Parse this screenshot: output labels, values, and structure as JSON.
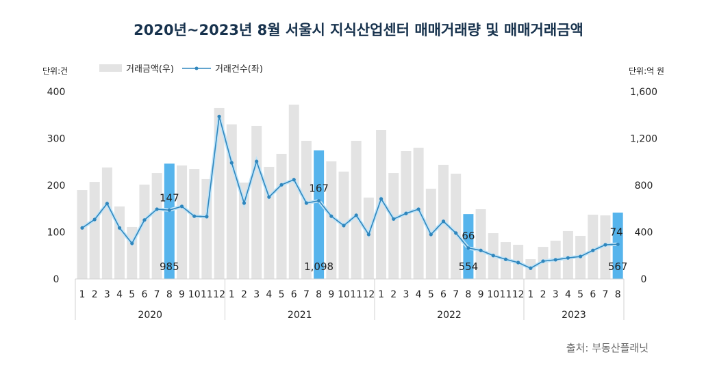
{
  "chart_data": {
    "type": "bar+line",
    "title": "2020년~2023년 8월 서울시 지식산업센터 매매거래량 및 매매거래금액",
    "left_unit": "단위:건",
    "right_unit": "단위:억 원",
    "source": "출처: 부동산플래닛",
    "left_ylim": [
      0,
      400
    ],
    "right_ylim": [
      0,
      1600
    ],
    "left_ticks": [
      "0",
      "100",
      "200",
      "300",
      "400"
    ],
    "right_ticks": [
      "0",
      "400",
      "800",
      "1,200",
      "1,600"
    ],
    "years": [
      "2020",
      "2021",
      "2022",
      "2023"
    ],
    "months": [
      "1",
      "2",
      "3",
      "4",
      "5",
      "6",
      "7",
      "8",
      "9",
      "10",
      "11",
      "12",
      "1",
      "2",
      "3",
      "4",
      "5",
      "6",
      "7",
      "8",
      "9",
      "10",
      "11",
      "12",
      "1",
      "2",
      "3",
      "4",
      "5",
      "6",
      "7",
      "8",
      "9",
      "10",
      "11",
      "12",
      "1",
      "2",
      "3",
      "4",
      "5",
      "6",
      "7",
      "8"
    ],
    "highlight_indices": [
      7,
      19,
      31,
      43
    ],
    "colors": {
      "bar": "#e3e3e3",
      "bar_highlight": "#56b4ec",
      "line": "#2f86bd",
      "line_glow": "#bfe3f7"
    },
    "series": [
      {
        "name": "거래금액(우)",
        "axis": "right",
        "kind": "bar",
        "values": [
          759,
          829,
          952,
          619,
          444,
          806,
          905,
          985,
          969,
          940,
          853,
          1460,
          1320,
          823,
          1308,
          958,
          1069,
          1489,
          1180,
          1098,
          1004,
          917,
          1180,
          695,
          1273,
          905,
          1092,
          1121,
          771,
          975,
          899,
          554,
          596,
          391,
          315,
          292,
          169,
          274,
          327,
          409,
          368,
          549,
          543,
          567
        ],
        "labels": {
          "7": "985",
          "19": "1,098",
          "31": "554",
          "43": "567"
        }
      },
      {
        "name": "거래건수(좌)",
        "axis": "left",
        "kind": "line",
        "values": [
          109,
          127,
          161,
          109,
          76,
          126,
          149,
          147,
          155,
          134,
          133,
          347,
          248,
          162,
          251,
          175,
          201,
          212,
          162,
          167,
          134,
          114,
          136,
          95,
          171,
          128,
          140,
          149,
          95,
          123,
          98,
          66,
          61,
          50,
          42,
          35,
          23,
          38,
          41,
          45,
          48,
          61,
          73,
          74
        ],
        "labels": {
          "7": "147",
          "19": "167",
          "31": "66",
          "43": "74"
        }
      }
    ]
  }
}
